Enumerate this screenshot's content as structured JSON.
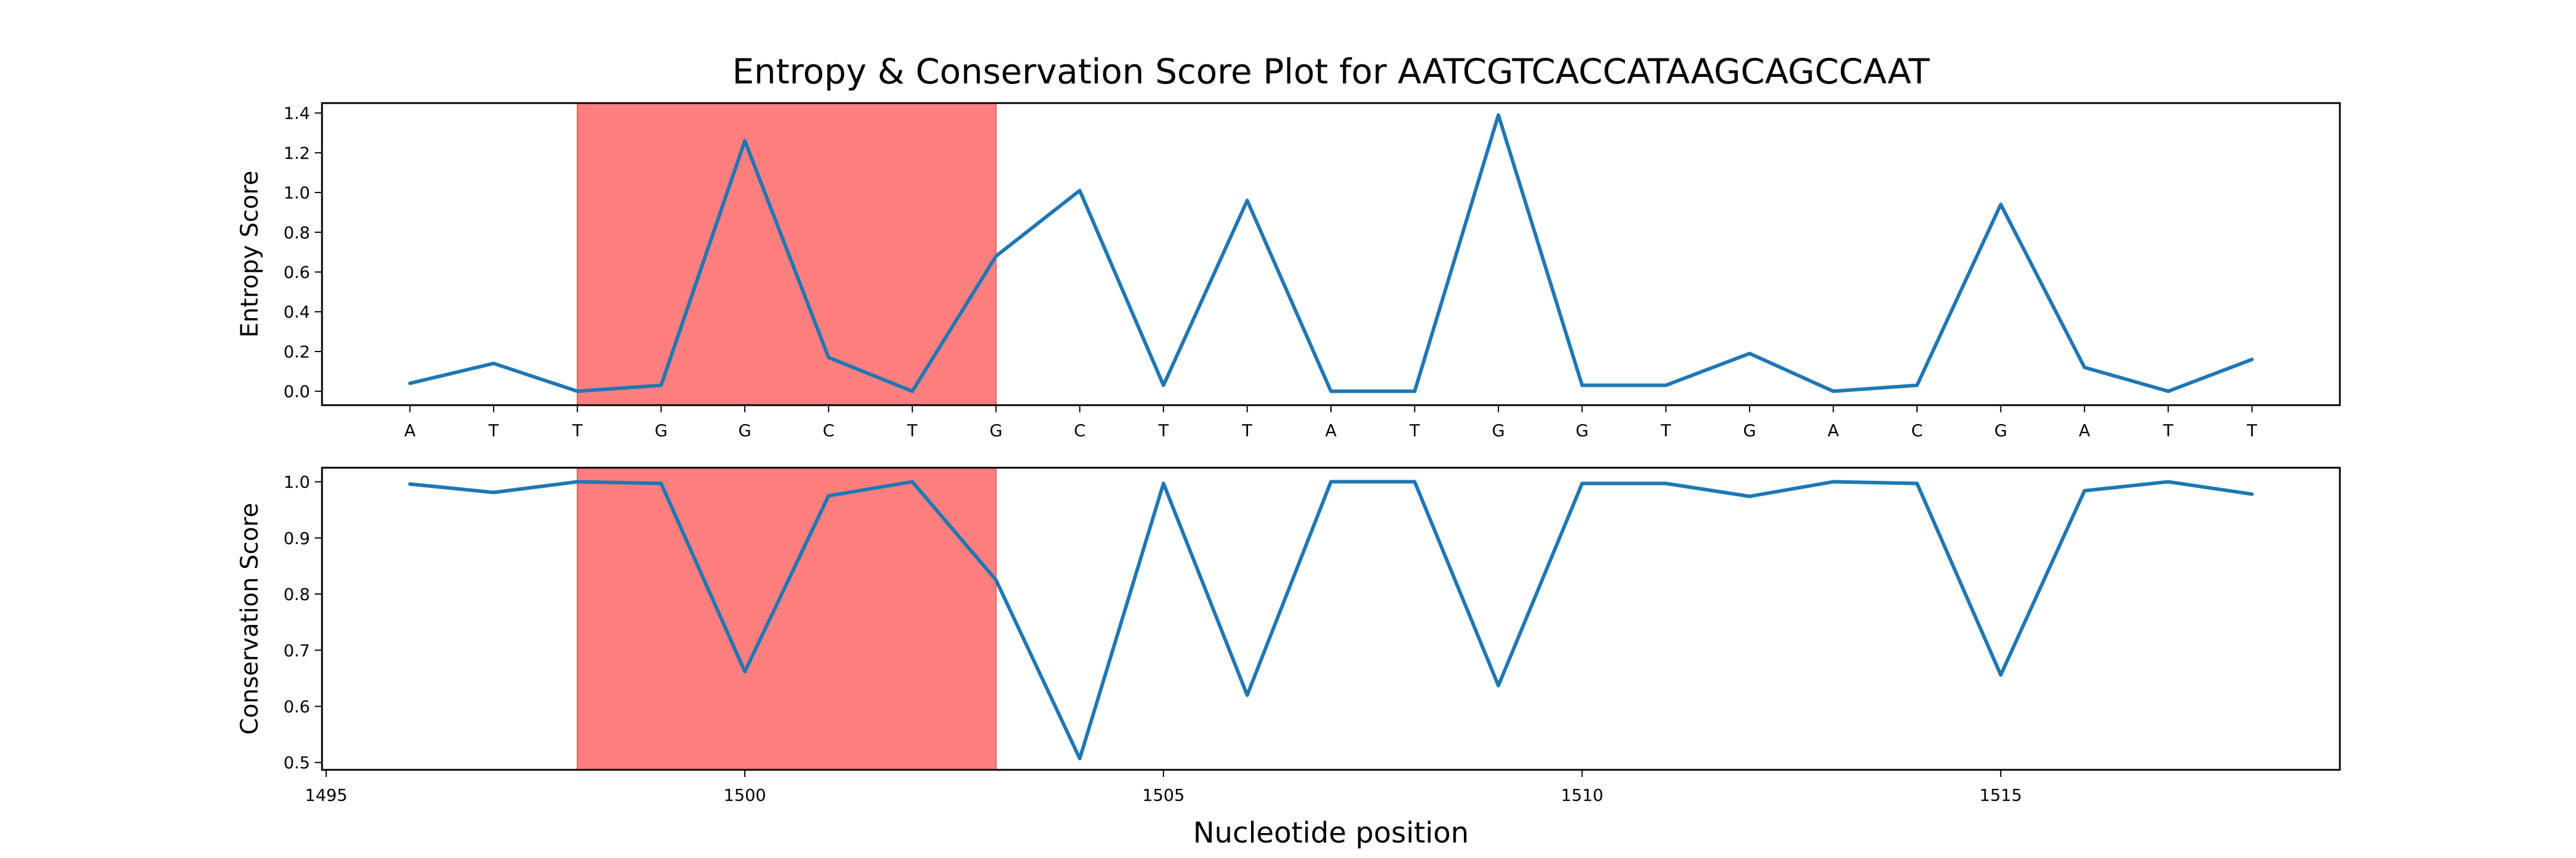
{
  "chart_data": {
    "type": "line",
    "title": "Entropy & Conservation Score Plot for AATCGTCACCATAAGCAGCCAAT",
    "xlabel": "Nucleotide position",
    "x": [
      1496,
      1497,
      1498,
      1499,
      1500,
      1501,
      1502,
      1503,
      1504,
      1505,
      1506,
      1507,
      1508,
      1509,
      1510,
      1511,
      1512,
      1513,
      1514,
      1515,
      1516,
      1517,
      1518
    ],
    "x_ticks": [
      1495,
      1500,
      1505,
      1510,
      1515
    ],
    "xlim": [
      1494.95,
      1519.05
    ],
    "nucleotide_labels": [
      "A",
      "T",
      "T",
      "G",
      "G",
      "C",
      "T",
      "G",
      "C",
      "T",
      "T",
      "A",
      "T",
      "G",
      "G",
      "T",
      "G",
      "A",
      "C",
      "G",
      "A",
      "T",
      "T"
    ],
    "highlight_region": {
      "x_start": 1498,
      "x_end": 1503,
      "color": "#ff7f7f"
    },
    "line_color": "#1f77b4",
    "panels": [
      {
        "name": "entropy",
        "ylabel": "Entropy Score",
        "ylim": [
          -0.07,
          1.45
        ],
        "y_ticks": [
          "0.0",
          "0.2",
          "0.4",
          "0.6",
          "0.8",
          "1.0",
          "1.2",
          "1.4"
        ],
        "values": [
          0.04,
          0.14,
          0.0,
          0.03,
          1.26,
          0.17,
          0.0,
          0.68,
          1.01,
          0.03,
          0.96,
          0.0,
          0.0,
          1.39,
          0.03,
          0.03,
          0.19,
          0.0,
          0.03,
          0.94,
          0.12,
          0.0,
          0.16
        ]
      },
      {
        "name": "conservation",
        "ylabel": "Conservation Score",
        "ylim": [
          0.487,
          1.025
        ],
        "y_ticks": [
          "0.5",
          "0.6",
          "0.7",
          "0.8",
          "0.9",
          "1.0"
        ],
        "values": [
          0.996,
          0.981,
          1.0,
          0.997,
          0.662,
          0.975,
          1.0,
          0.825,
          0.507,
          0.997,
          0.62,
          1.0,
          1.0,
          0.637,
          0.997,
          0.997,
          0.974,
          1.0,
          0.997,
          0.656,
          0.984,
          1.0,
          0.978
        ]
      }
    ]
  }
}
